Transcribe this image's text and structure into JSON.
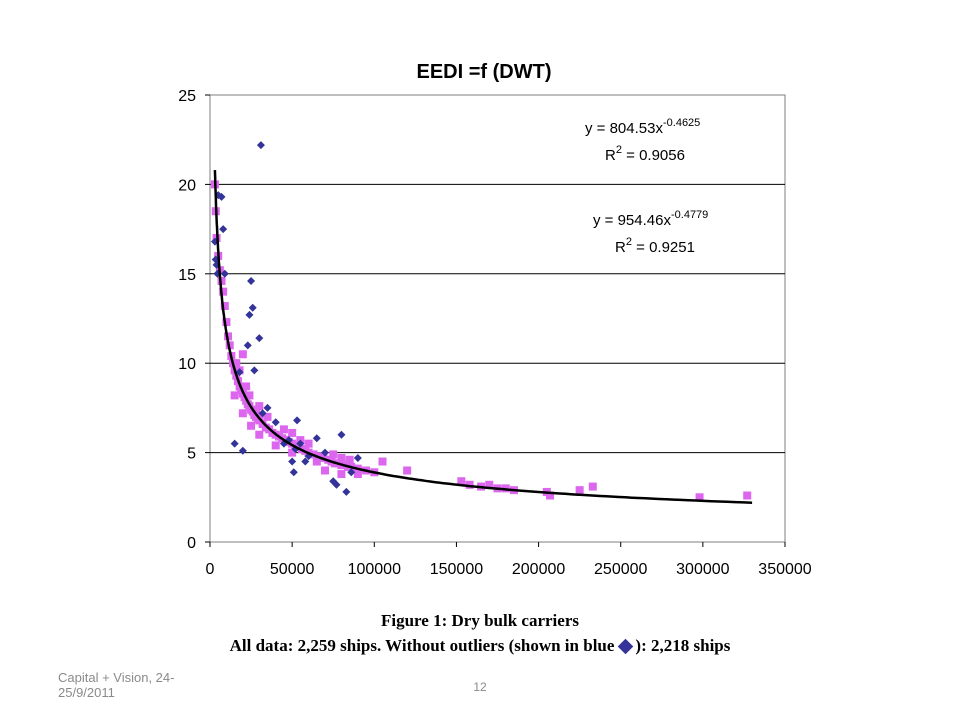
{
  "chart_data": {
    "type": "scatter",
    "title": "EEDI =f (DWT)",
    "xlabel": "",
    "ylabel": "",
    "xlim": [
      0,
      350000
    ],
    "ylim": [
      0,
      25
    ],
    "x_ticks": [
      0,
      50000,
      100000,
      150000,
      200000,
      250000,
      300000,
      350000
    ],
    "x_tick_labels": [
      "0",
      "50000",
      "100000",
      "150000",
      "200000",
      "250000",
      "300000",
      "350000"
    ],
    "y_ticks": [
      0,
      5,
      10,
      15,
      20,
      25
    ],
    "y_tick_labels": [
      "0",
      "5",
      "10",
      "15",
      "20",
      "25"
    ],
    "grid": "horizontal",
    "series": [
      {
        "color": "#dd66ee",
        "marker": "square",
        "points": [
          [
            3000,
            20.0
          ],
          [
            3500,
            18.5
          ],
          [
            4000,
            17.0
          ],
          [
            5000,
            16.0
          ],
          [
            6000,
            15.2
          ],
          [
            7000,
            14.6
          ],
          [
            8000,
            14.0
          ],
          [
            9000,
            13.2
          ],
          [
            10000,
            12.3
          ],
          [
            11000,
            11.5
          ],
          [
            12000,
            11.0
          ],
          [
            13000,
            10.4
          ],
          [
            14000,
            10.0
          ],
          [
            15000,
            9.6
          ],
          [
            16000,
            9.3
          ],
          [
            17000,
            9.0
          ],
          [
            18000,
            8.7
          ],
          [
            19000,
            8.5
          ],
          [
            20000,
            8.3
          ],
          [
            21000,
            8.1
          ],
          [
            22000,
            7.9
          ],
          [
            23000,
            7.7
          ],
          [
            24000,
            7.6
          ],
          [
            25000,
            7.4
          ],
          [
            26000,
            7.3
          ],
          [
            27000,
            7.1
          ],
          [
            28000,
            7.0
          ],
          [
            29000,
            6.9
          ],
          [
            30000,
            6.8
          ],
          [
            32000,
            6.6
          ],
          [
            34000,
            6.4
          ],
          [
            36000,
            6.3
          ],
          [
            38000,
            6.1
          ],
          [
            40000,
            6.0
          ],
          [
            42000,
            5.9
          ],
          [
            44000,
            5.8
          ],
          [
            46000,
            5.7
          ],
          [
            48000,
            5.6
          ],
          [
            50000,
            5.5
          ],
          [
            52000,
            5.4
          ],
          [
            54000,
            5.3
          ],
          [
            56000,
            5.2
          ],
          [
            58000,
            5.1
          ],
          [
            60000,
            5.0
          ],
          [
            63000,
            4.9
          ],
          [
            66000,
            4.8
          ],
          [
            69000,
            4.7
          ],
          [
            72000,
            4.6
          ],
          [
            74000,
            4.5
          ],
          [
            76000,
            4.4
          ],
          [
            78000,
            4.4
          ],
          [
            80000,
            4.3
          ],
          [
            82000,
            4.3
          ],
          [
            84000,
            4.2
          ],
          [
            86000,
            4.2
          ],
          [
            88000,
            4.1
          ],
          [
            90000,
            4.1
          ],
          [
            95000,
            4.0
          ],
          [
            100000,
            3.9
          ],
          [
            105000,
            4.5
          ],
          [
            120000,
            4.0
          ],
          [
            153000,
            3.4
          ],
          [
            158000,
            3.2
          ],
          [
            165000,
            3.1
          ],
          [
            170000,
            3.2
          ],
          [
            175000,
            3.0
          ],
          [
            180000,
            3.0
          ],
          [
            185000,
            2.9
          ],
          [
            205000,
            2.8
          ],
          [
            207000,
            2.6
          ],
          [
            225000,
            2.9
          ],
          [
            233000,
            3.1
          ],
          [
            298000,
            2.5
          ],
          [
            327000,
            2.6
          ],
          [
            16000,
            10.0
          ],
          [
            18000,
            9.6
          ],
          [
            22000,
            8.7
          ],
          [
            24000,
            8.2
          ],
          [
            28000,
            7.4
          ],
          [
            30000,
            7.6
          ],
          [
            35000,
            7.0
          ],
          [
            45000,
            6.3
          ],
          [
            50000,
            6.1
          ],
          [
            55000,
            5.7
          ],
          [
            60000,
            5.5
          ],
          [
            65000,
            4.5
          ],
          [
            75000,
            4.9
          ],
          [
            80000,
            4.7
          ],
          [
            85000,
            4.6
          ],
          [
            90000,
            3.8
          ],
          [
            20000,
            10.5
          ],
          [
            15000,
            8.2
          ],
          [
            20000,
            7.2
          ],
          [
            25000,
            6.5
          ],
          [
            30000,
            6.0
          ],
          [
            40000,
            5.4
          ],
          [
            50000,
            5.0
          ],
          [
            70000,
            4.0
          ],
          [
            80000,
            3.8
          ]
        ]
      },
      {
        "color": "#333399",
        "marker": "diamond",
        "points": [
          [
            3000,
            16.8
          ],
          [
            3500,
            15.8
          ],
          [
            4000,
            15.5
          ],
          [
            4500,
            15.0
          ],
          [
            5000,
            19.4
          ],
          [
            7000,
            19.3
          ],
          [
            8000,
            17.5
          ],
          [
            9000,
            15.0
          ],
          [
            31000,
            22.2
          ],
          [
            25000,
            14.6
          ],
          [
            26000,
            13.1
          ],
          [
            24000,
            12.7
          ],
          [
            30000,
            11.4
          ],
          [
            23000,
            11.0
          ],
          [
            27000,
            9.6
          ],
          [
            32000,
            7.2
          ],
          [
            35000,
            7.5
          ],
          [
            40000,
            6.7
          ],
          [
            48000,
            5.7
          ],
          [
            50000,
            4.5
          ],
          [
            51000,
            3.9
          ],
          [
            53000,
            6.8
          ],
          [
            55000,
            5.5
          ],
          [
            45000,
            5.5
          ],
          [
            60000,
            4.8
          ],
          [
            65000,
            5.8
          ],
          [
            70000,
            5.0
          ],
          [
            75000,
            3.4
          ],
          [
            77000,
            3.2
          ],
          [
            80000,
            6.0
          ],
          [
            83000,
            2.8
          ],
          [
            86000,
            3.9
          ],
          [
            90000,
            4.7
          ],
          [
            15000,
            5.5
          ],
          [
            20000,
            5.1
          ],
          [
            18000,
            9.5
          ],
          [
            52000,
            5.2
          ],
          [
            58000,
            4.5
          ]
        ]
      },
      {
        "type": "line",
        "color": "#000000",
        "fit": "power",
        "coefficient": 954.46,
        "exponent": -0.4779,
        "x_range": [
          3000,
          330000
        ]
      }
    ],
    "annotations": [
      {
        "equation": "y = 804.53x",
        "exponent": "-0.4625",
        "r2_label": "R",
        "r2_power": "2",
        "r2_value": " = 0.9056"
      },
      {
        "equation": "y = 954.46x",
        "exponent": "-0.4779",
        "r2_label": "R",
        "r2_power": "2",
        "r2_value": " = 0.9251"
      }
    ]
  },
  "caption": {
    "line1": "Figure 1:   Dry bulk carriers",
    "line2_before": "All data: 2,259 ships.  Without outliers (shown in blue",
    "line2_after": "): 2,218 ships"
  },
  "footer": {
    "left": "Capital + Vision, 24-25/9/2011",
    "page_number": "12"
  }
}
